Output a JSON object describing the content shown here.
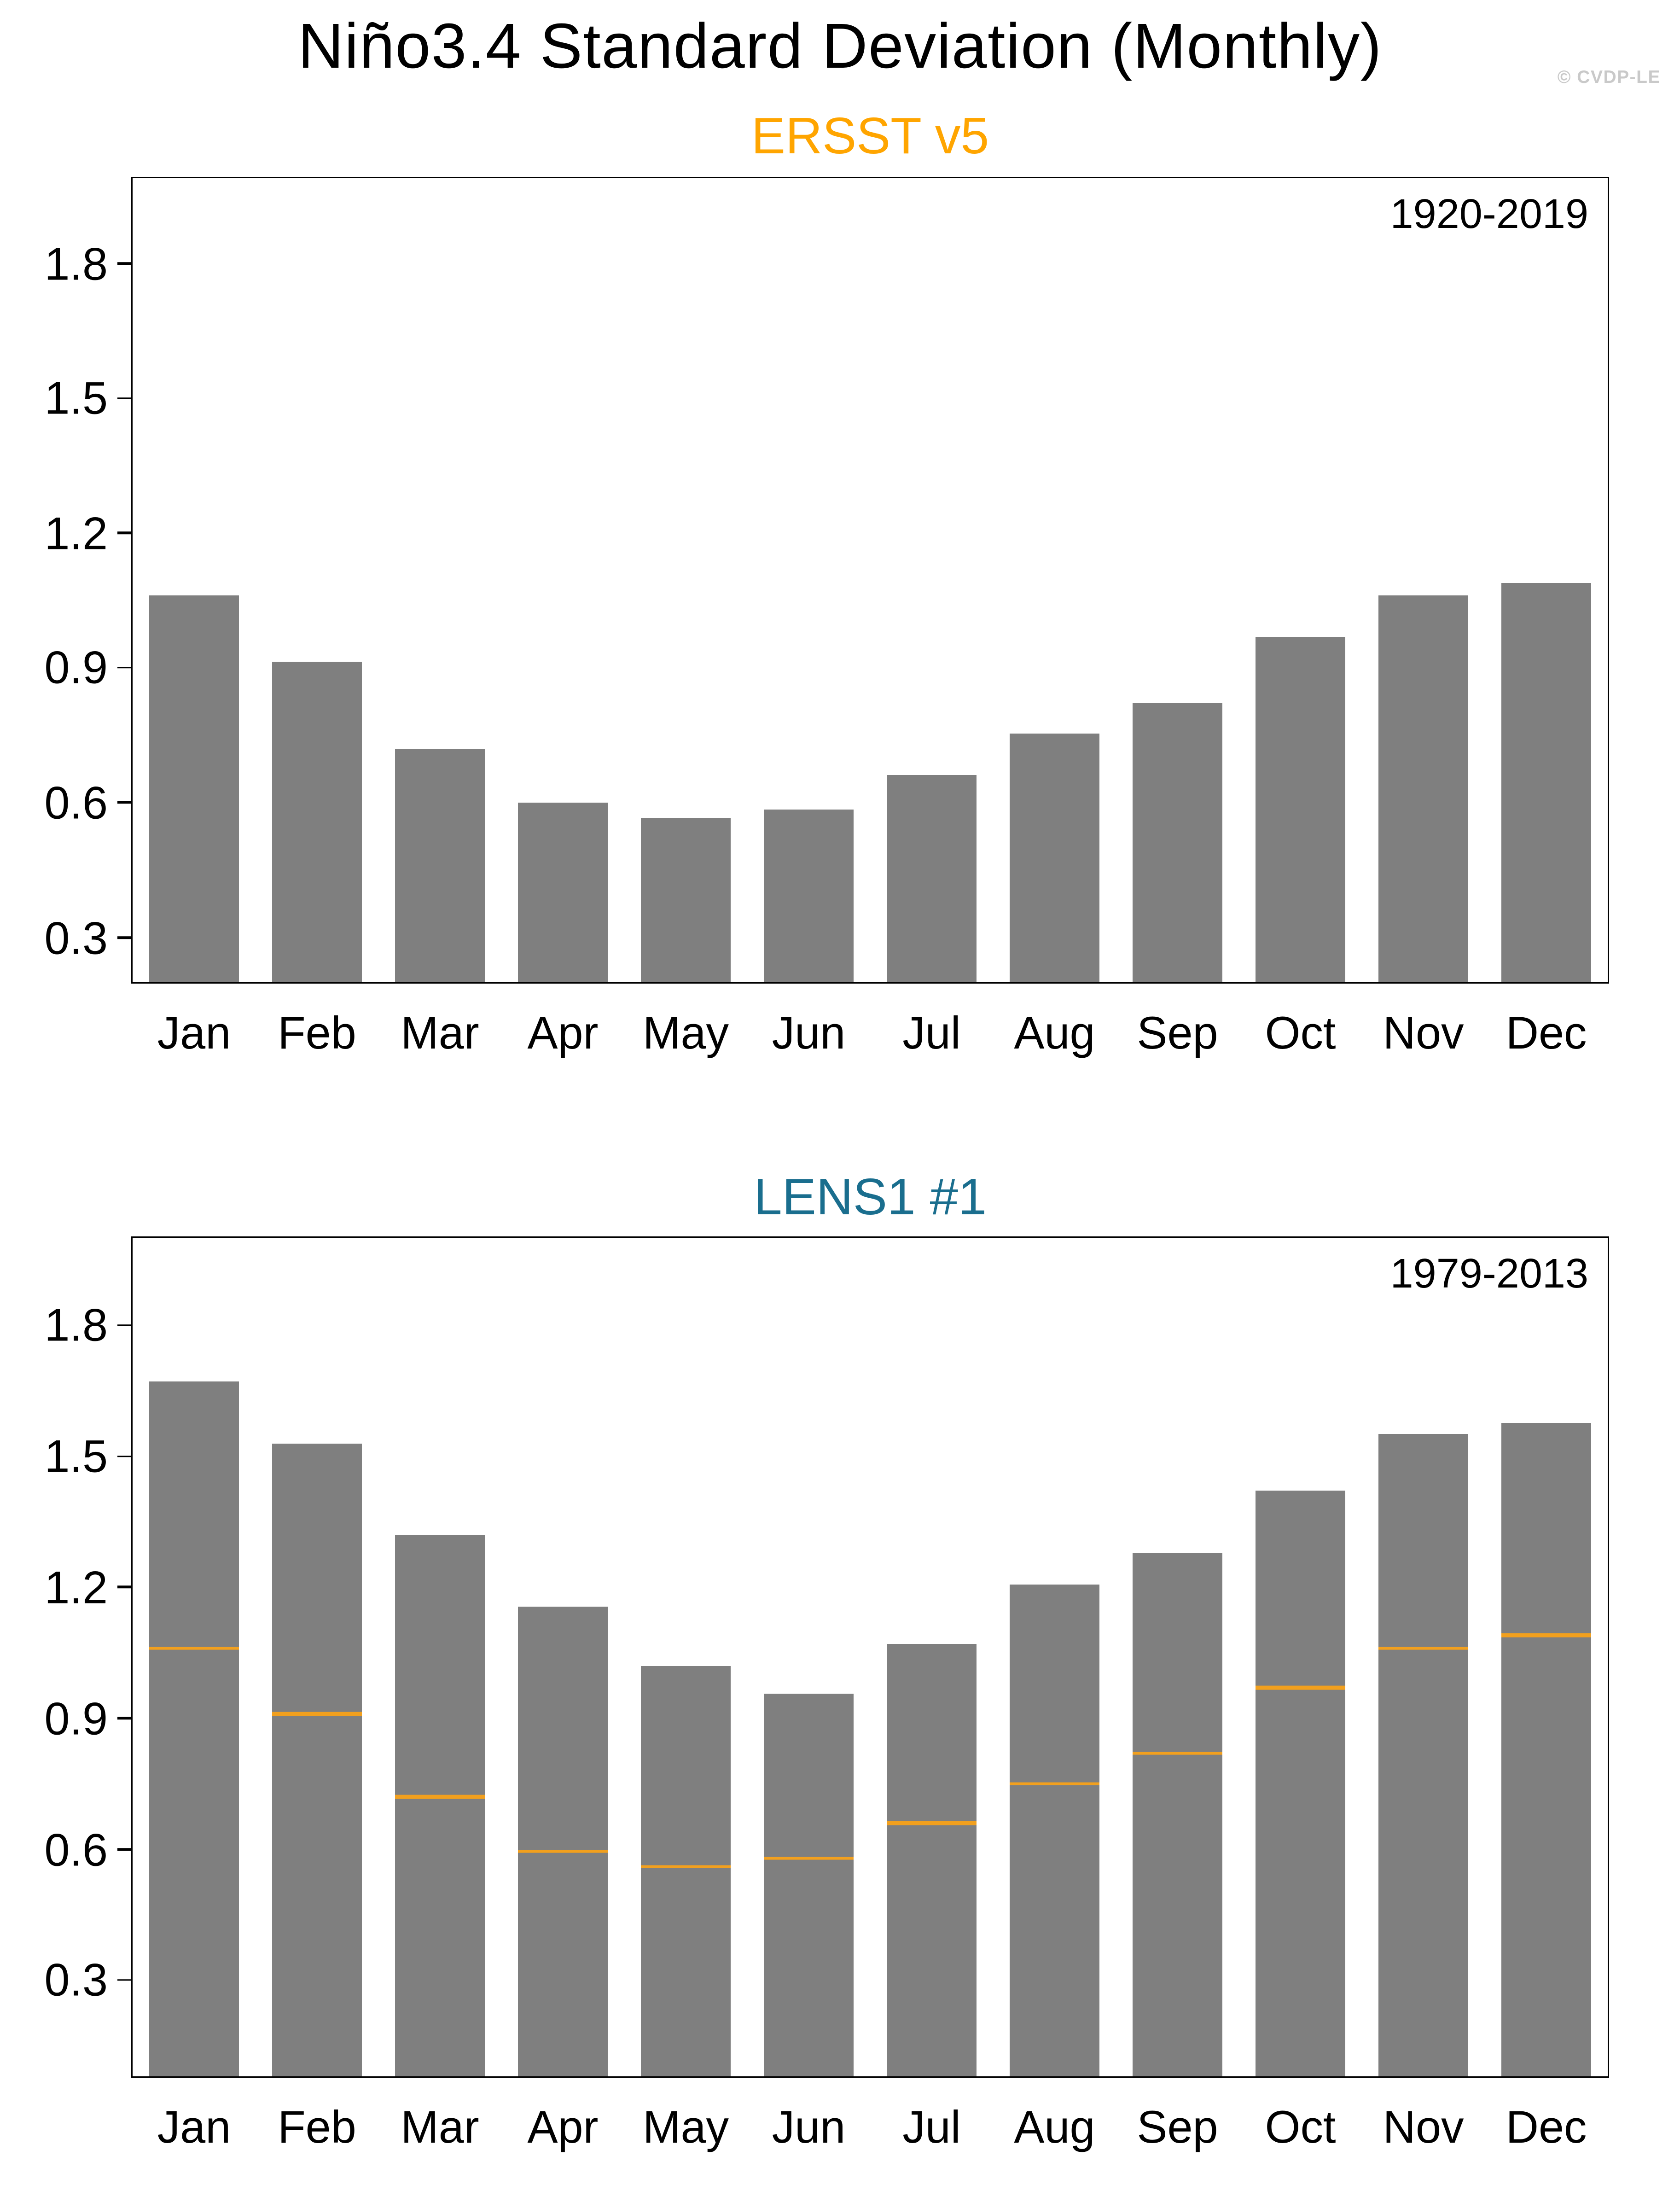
{
  "page": {
    "title": "Niño3.4 Standard Deviation (Monthly)",
    "watermark": "© CVDP-LE"
  },
  "chart_data": [
    {
      "type": "bar",
      "title": "ERSST v5",
      "title_color": "#FFA500",
      "period_label": "1920-2019",
      "categories": [
        "Jan",
        "Feb",
        "Mar",
        "Apr",
        "May",
        "Jun",
        "Jul",
        "Aug",
        "Sep",
        "Oct",
        "Nov",
        "Dec"
      ],
      "values": [
        1.06,
        0.915,
        0.72,
        0.6,
        0.565,
        0.585,
        0.66,
        0.755,
        0.82,
        0.97,
        1.06,
        1.09
      ],
      "bar_color": "#7f7f7f",
      "yticks": [
        0.3,
        0.6,
        0.9,
        1.2,
        1.5,
        1.8
      ],
      "ylim": [
        0.2,
        1.99
      ],
      "xlabel": "",
      "ylabel": "",
      "grid": false,
      "legend": null
    },
    {
      "type": "bar",
      "title": "LENS1 #1",
      "title_color": "#1A6E8E",
      "period_label": "1979-2013",
      "categories": [
        "Jan",
        "Feb",
        "Mar",
        "Apr",
        "May",
        "Jun",
        "Jul",
        "Aug",
        "Sep",
        "Oct",
        "Nov",
        "Dec"
      ],
      "values": [
        1.67,
        1.53,
        1.32,
        1.155,
        1.02,
        0.955,
        1.07,
        1.205,
        1.28,
        1.42,
        1.55,
        1.575
      ],
      "reference_line_values": [
        1.06,
        0.91,
        0.72,
        0.595,
        0.56,
        0.58,
        0.66,
        0.75,
        0.82,
        0.97,
        1.06,
        1.09
      ],
      "reference_line_color": "#F2A01E",
      "bar_color": "#7f7f7f",
      "yticks": [
        0.3,
        0.6,
        0.9,
        1.2,
        1.5,
        1.8
      ],
      "ylim": [
        0.08,
        2.0
      ],
      "xlabel": "",
      "ylabel": "",
      "grid": false,
      "legend": null
    }
  ]
}
